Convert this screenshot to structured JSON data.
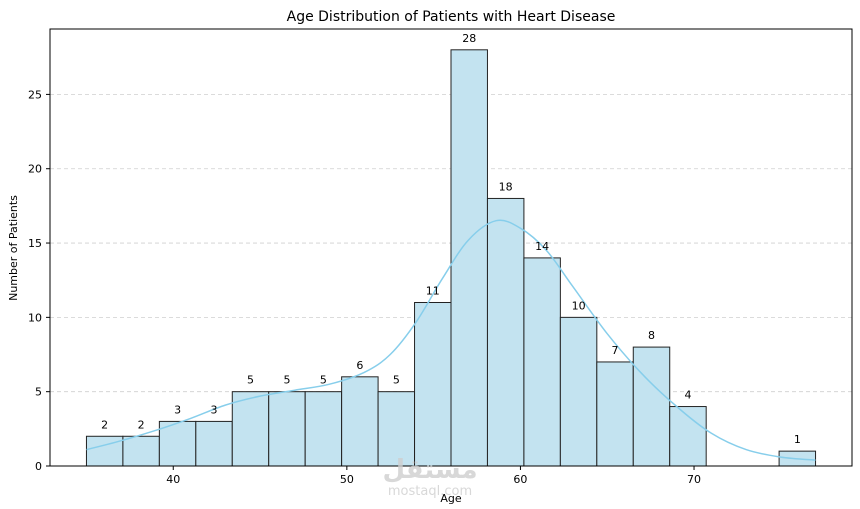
{
  "chart_data": {
    "type": "bar",
    "title": "Age Distribution of Patients with Heart Disease",
    "xlabel": "Age",
    "ylabel": "Number of Patients",
    "xlim": [
      32.9,
      79.1
    ],
    "ylim": [
      0,
      29.4
    ],
    "grid": "y-dashed",
    "bin_edges": [
      35,
      37.1,
      39.2,
      41.3,
      43.4,
      45.5,
      47.6,
      49.7,
      51.8,
      53.9,
      56.0,
      58.1,
      60.2,
      62.3,
      64.4,
      66.5,
      68.6,
      70.7,
      72.8,
      74.9,
      77.0
    ],
    "values": [
      2,
      2,
      3,
      3,
      5,
      5,
      5,
      6,
      5,
      11,
      28,
      18,
      14,
      10,
      7,
      8,
      4,
      0,
      0,
      1
    ],
    "data_labels": [
      "2",
      "2",
      "3",
      "3",
      "5",
      "5",
      "5",
      "6",
      "5",
      "11",
      "28",
      "18",
      "14",
      "10",
      "7",
      "8",
      "4",
      "",
      "",
      "1"
    ],
    "xticks": [
      40,
      50,
      60,
      70
    ],
    "yticks": [
      0,
      5,
      10,
      15,
      20,
      25
    ],
    "kde": {
      "x": [
        35,
        37,
        39,
        41,
        43,
        45,
        47,
        49,
        51,
        52.5,
        54,
        55.5,
        57,
        58.6,
        60,
        61.5,
        63,
        65,
        67,
        69,
        71,
        73,
        75,
        77
      ],
      "y": [
        1.1,
        1.7,
        2.4,
        3.2,
        4.1,
        4.7,
        5.1,
        5.5,
        6.3,
        7.5,
        9.7,
        12.6,
        15.2,
        16.5,
        16.0,
        14.5,
        12.1,
        8.9,
        6.2,
        4.0,
        2.2,
        1.1,
        0.6,
        0.4
      ]
    },
    "colors": {
      "bar_fill": "#c3e3f0",
      "bar_edge": "#222222",
      "kde": "#87ceeb",
      "grid": "#cfcfcf"
    }
  },
  "watermark": {
    "logo": "مستقل",
    "site": "mostaql.com"
  }
}
